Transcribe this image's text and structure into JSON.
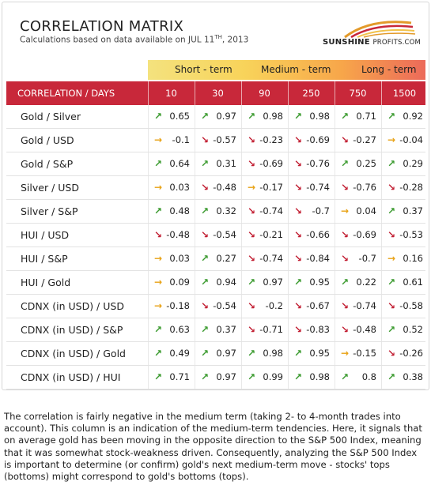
{
  "header": {
    "title": "CORRELATION MATRIX",
    "subtitle_prefix": "Calculations based on data available on  JUL 11",
    "subtitle_sup": "TH",
    "subtitle_suffix": ", 2013",
    "logo_text_bold": "SUNSHINE",
    "logo_text_small": "PROFITS.COM"
  },
  "terms": [
    "Short - term",
    "Medium - term",
    "Long - term"
  ],
  "colors": {
    "header_red": "#c8283a",
    "up": "#3a9a2e",
    "down": "#c21f33",
    "flat": "#e8a214"
  },
  "chart_data": {
    "type": "table",
    "row_header": "CORRELATION / DAYS",
    "columns": [
      "10",
      "30",
      "90",
      "250",
      "750",
      "1500"
    ],
    "rows": [
      {
        "label": "Gold / Silver",
        "values": [
          "0.65",
          "0.97",
          "0.98",
          "0.98",
          "0.71",
          "0.92"
        ],
        "trends": [
          "up",
          "up",
          "up",
          "up",
          "up",
          "up"
        ]
      },
      {
        "label": "Gold / USD",
        "values": [
          "-0.1",
          "-0.57",
          "-0.23",
          "-0.69",
          "-0.27",
          "-0.04"
        ],
        "trends": [
          "flat",
          "down",
          "down",
          "down",
          "down",
          "flat"
        ]
      },
      {
        "label": "Gold / S&P",
        "values": [
          "0.64",
          "0.31",
          "-0.69",
          "-0.76",
          "0.25",
          "0.29"
        ],
        "trends": [
          "up",
          "up",
          "down",
          "down",
          "up",
          "up"
        ]
      },
      {
        "label": "Silver / USD",
        "values": [
          "0.03",
          "-0.48",
          "-0.17",
          "-0.74",
          "-0.76",
          "-0.28"
        ],
        "trends": [
          "flat",
          "down",
          "flat",
          "down",
          "down",
          "down"
        ]
      },
      {
        "label": "Silver / S&P",
        "values": [
          "0.48",
          "0.32",
          "-0.74",
          "-0.7",
          "0.04",
          "0.37"
        ],
        "trends": [
          "up",
          "up",
          "down",
          "down",
          "flat",
          "up"
        ]
      },
      {
        "label": "HUI / USD",
        "values": [
          "-0.48",
          "-0.54",
          "-0.21",
          "-0.66",
          "-0.69",
          "-0.53"
        ],
        "trends": [
          "down",
          "down",
          "down",
          "down",
          "down",
          "down"
        ]
      },
      {
        "label": "HUI / S&P",
        "values": [
          "0.03",
          "0.27",
          "-0.74",
          "-0.84",
          "-0.7",
          "0.16"
        ],
        "trends": [
          "flat",
          "up",
          "down",
          "down",
          "down",
          "flat"
        ]
      },
      {
        "label": "HUI / Gold",
        "values": [
          "0.09",
          "0.94",
          "0.97",
          "0.95",
          "0.22",
          "0.61"
        ],
        "trends": [
          "flat",
          "up",
          "up",
          "up",
          "up",
          "up"
        ]
      },
      {
        "label": "CDNX (in USD) / USD",
        "values": [
          "-0.18",
          "-0.54",
          "-0.2",
          "-0.67",
          "-0.74",
          "-0.58"
        ],
        "trends": [
          "flat",
          "down",
          "down",
          "down",
          "down",
          "down"
        ]
      },
      {
        "label": "CDNX (in USD) / S&P",
        "values": [
          "0.63",
          "0.37",
          "-0.71",
          "-0.83",
          "-0.48",
          "0.52"
        ],
        "trends": [
          "up",
          "up",
          "down",
          "down",
          "down",
          "up"
        ]
      },
      {
        "label": "CDNX (in USD) / Gold",
        "values": [
          "0.49",
          "0.97",
          "0.98",
          "0.95",
          "-0.15",
          "-0.26"
        ],
        "trends": [
          "up",
          "up",
          "up",
          "up",
          "flat",
          "down"
        ]
      },
      {
        "label": "CDNX (in USD) / HUI",
        "values": [
          "0.71",
          "0.97",
          "0.99",
          "0.98",
          "0.8",
          "0.38"
        ],
        "trends": [
          "up",
          "up",
          "up",
          "up",
          "up",
          "up"
        ]
      }
    ]
  },
  "caption": "The correlation is fairly negative in the medium term (taking 2- to 4-month trades into account). This column is an indication of the medium-term tendencies. Here, it signals that on average gold has been moving in the opposite direction to the S&P 500 Index, meaning that it was somewhat stock-weakness driven. Consequently, analyzing the S&P 500 Index is important to determine (or confirm) gold's next medium-term move - stocks' tops (bottoms) might correspond to gold's bottoms (tops)."
}
